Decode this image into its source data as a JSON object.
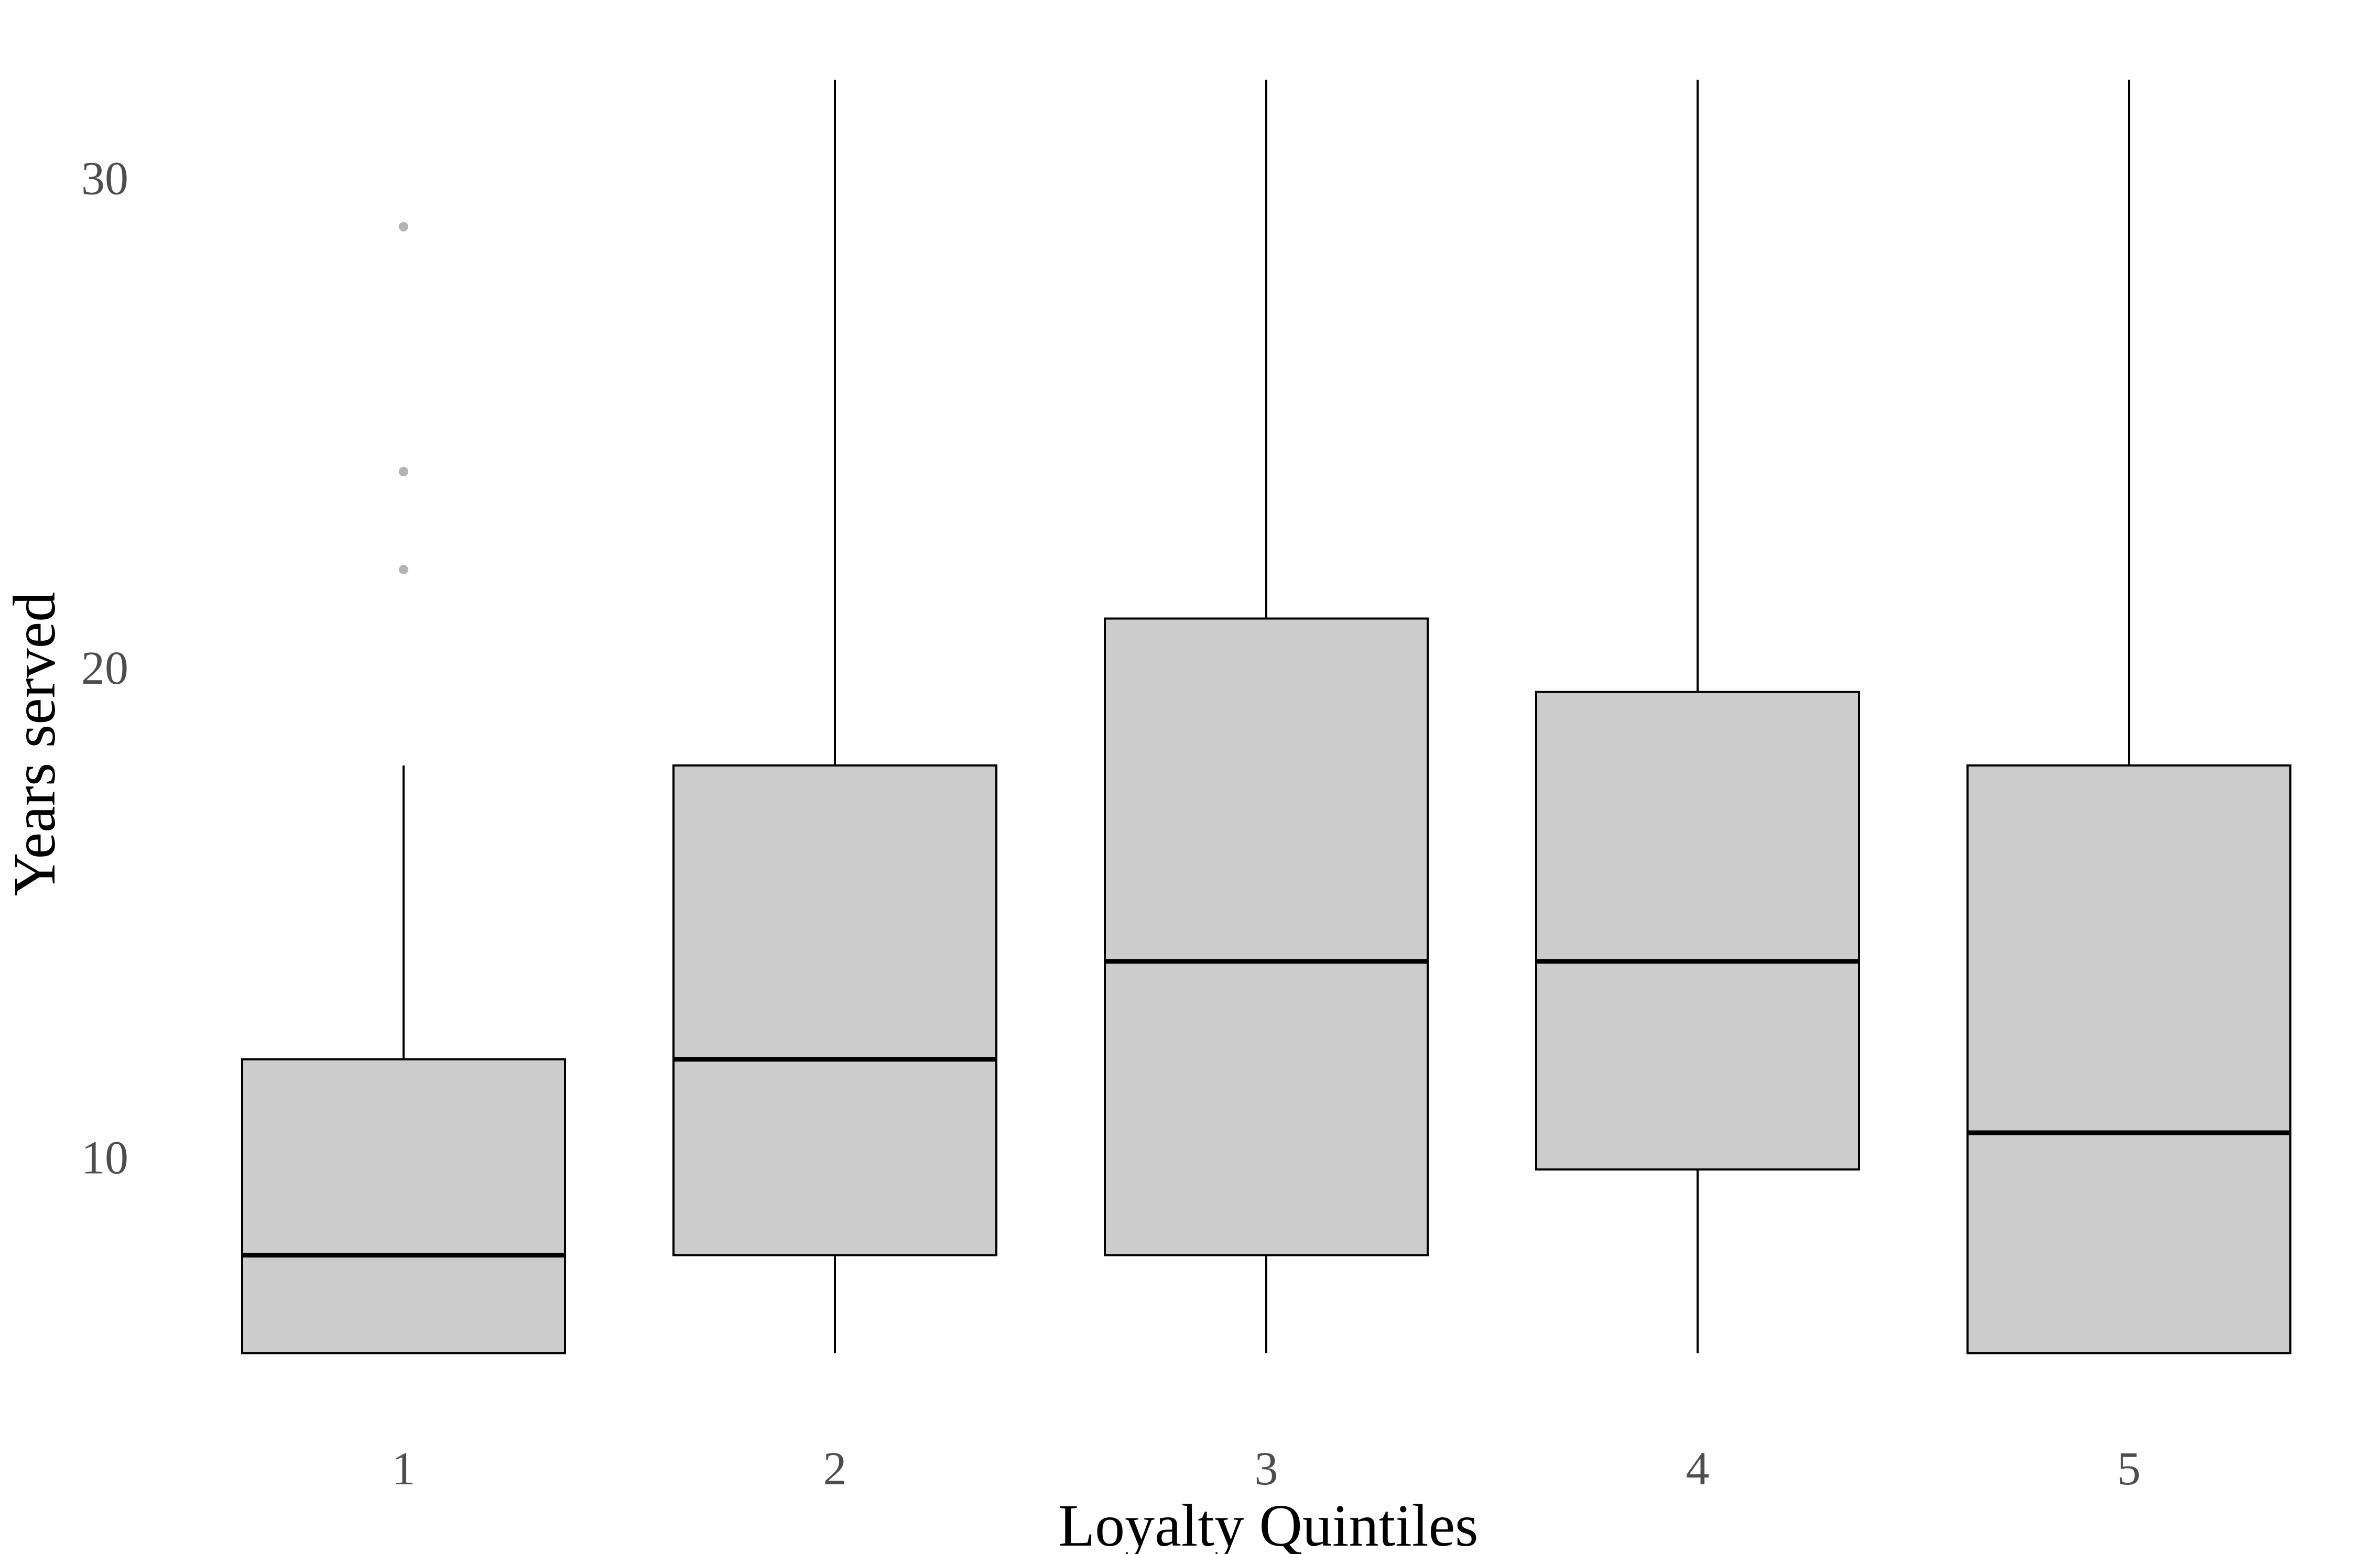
{
  "chart_data": {
    "type": "boxplot",
    "title": "",
    "xlabel": "Loyalty Quintiles",
    "ylabel": "Years served",
    "categories": [
      "1",
      "2",
      "3",
      "4",
      "5"
    ],
    "ylim": [
      5.6,
      32.1
    ],
    "yticks": [
      10,
      20,
      30
    ],
    "grid": false,
    "legend": "none",
    "boxes": [
      {
        "category": "1",
        "whisker_low": 6,
        "q1": 6,
        "median": 8,
        "q3": 12,
        "whisker_high": 18,
        "outliers": [
          22,
          24,
          29
        ]
      },
      {
        "category": "2",
        "whisker_low": 6,
        "q1": 8,
        "median": 12,
        "q3": 18,
        "whisker_high": 32,
        "outliers": []
      },
      {
        "category": "3",
        "whisker_low": 6,
        "q1": 8,
        "median": 14,
        "q3": 21,
        "whisker_high": 32,
        "outliers": []
      },
      {
        "category": "4",
        "whisker_low": 6,
        "q1": 9.75,
        "median": 14,
        "q3": 19.5,
        "whisker_high": 32,
        "outliers": []
      },
      {
        "category": "5",
        "whisker_low": 6,
        "q1": 6,
        "median": 10.5,
        "q3": 18,
        "whisker_high": 32,
        "outliers": []
      }
    ],
    "colors": {
      "box_fill": "#cccccc",
      "box_stroke": "#000000",
      "median": "#000000",
      "outlier": "#999999",
      "tick_text": "#4d4d4d",
      "title_text": "#000000"
    }
  }
}
